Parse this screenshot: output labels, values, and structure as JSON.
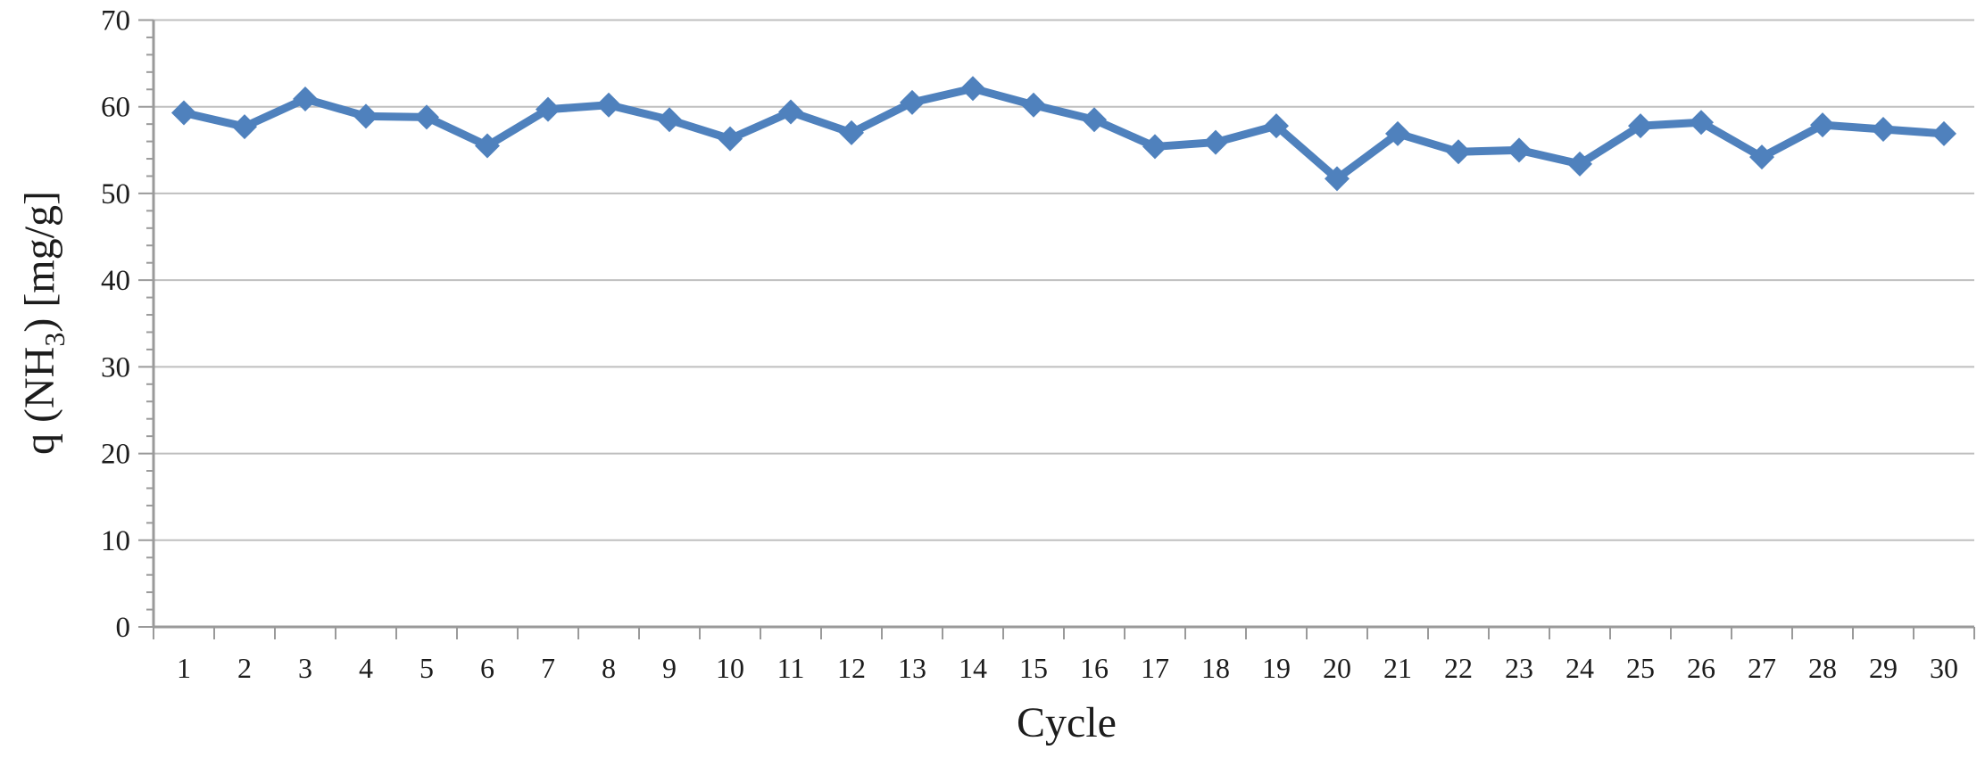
{
  "figure": {
    "kind": "line-chart-figure",
    "background": "#ffffff"
  },
  "chart_data": {
    "type": "line",
    "title": "",
    "xlabel": "Cycle",
    "ylabel": "q (NH3) [mg/g]",
    "ylabel_parts": {
      "pre": "q (NH",
      "sub": "3",
      "post": ") [mg/g]"
    },
    "x": [
      1,
      2,
      3,
      4,
      5,
      6,
      7,
      8,
      9,
      10,
      11,
      12,
      13,
      14,
      15,
      16,
      17,
      18,
      19,
      20,
      21,
      22,
      23,
      24,
      25,
      26,
      27,
      28,
      29,
      30
    ],
    "x_tick_labels": [
      "1",
      "2",
      "3",
      "4",
      "5",
      "6",
      "7",
      "8",
      "9",
      "10",
      "11",
      "12",
      "13",
      "14",
      "15",
      "16",
      "17",
      "18",
      "19",
      "20",
      "21",
      "22",
      "23",
      "24",
      "25",
      "26",
      "27",
      "28",
      "29",
      "30"
    ],
    "y_tick_labels": [
      "0",
      "10",
      "20",
      "30",
      "40",
      "50",
      "60",
      "70"
    ],
    "series": [
      {
        "name": "q(NH3)",
        "marker": "diamond",
        "color": "#4F81BD",
        "values": [
          59.3,
          57.7,
          60.9,
          58.9,
          58.8,
          55.5,
          59.7,
          60.2,
          58.5,
          56.3,
          59.4,
          57.0,
          60.5,
          62.1,
          60.2,
          58.5,
          55.4,
          55.9,
          57.8,
          51.7,
          56.9,
          54.8,
          55.0,
          53.4,
          57.8,
          58.2,
          54.2,
          57.9,
          57.4,
          56.9
        ]
      }
    ],
    "ylim": [
      0,
      70
    ],
    "y_major_step": 10,
    "y_minor_step": 2,
    "grid": "horizontal",
    "gridline_color": "#bfbfbf",
    "axis_color": "#9a9a9a",
    "legend": "none"
  }
}
